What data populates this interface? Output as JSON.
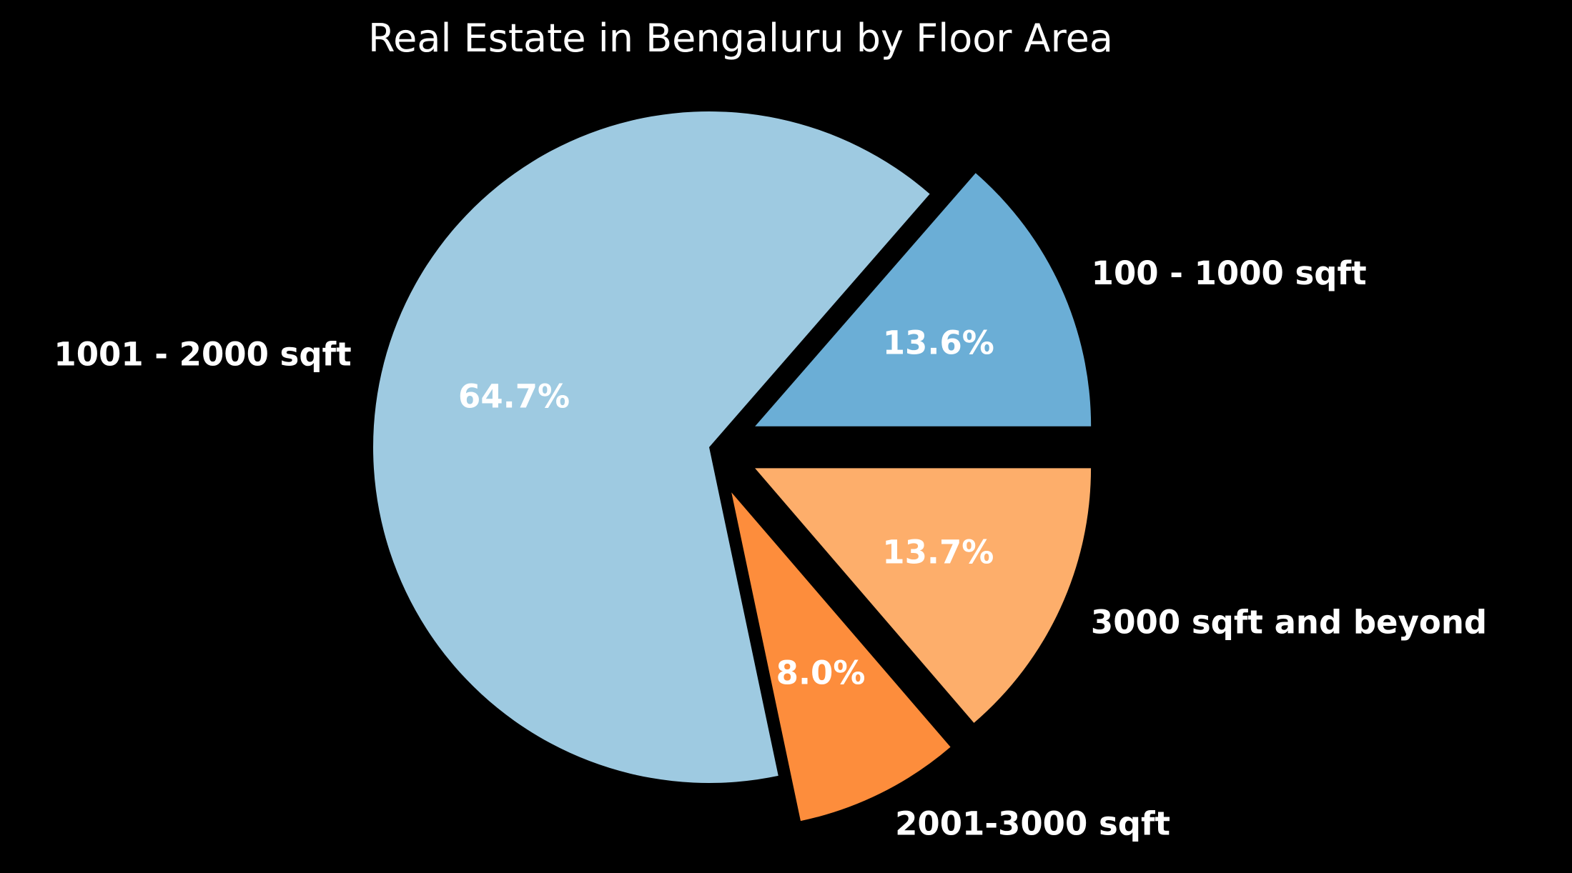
{
  "chart_data": {
    "type": "pie",
    "title": "Real Estate in Bengaluru by Floor Area",
    "slices": [
      {
        "label": "100 - 1000 sqft",
        "value": 13.6,
        "pct_label": "13.6%",
        "color": "#6baed6",
        "exploded": true
      },
      {
        "label": "1001 - 2000 sqft",
        "value": 64.7,
        "pct_label": "64.7%",
        "color": "#9ecae1",
        "exploded": false
      },
      {
        "label": "2001-3000 sqft",
        "value": 8.0,
        "pct_label": "8.0%",
        "color": "#fd8d3c",
        "exploded": true
      },
      {
        "label": "3000 sqft and beyond",
        "value": 13.7,
        "pct_label": "13.7%",
        "color": "#fdae6b",
        "exploded": true
      }
    ],
    "start_angle": "0 degrees (3 o'clock), counterclockwise",
    "background": "#000000",
    "text_color": "#ffffff"
  }
}
